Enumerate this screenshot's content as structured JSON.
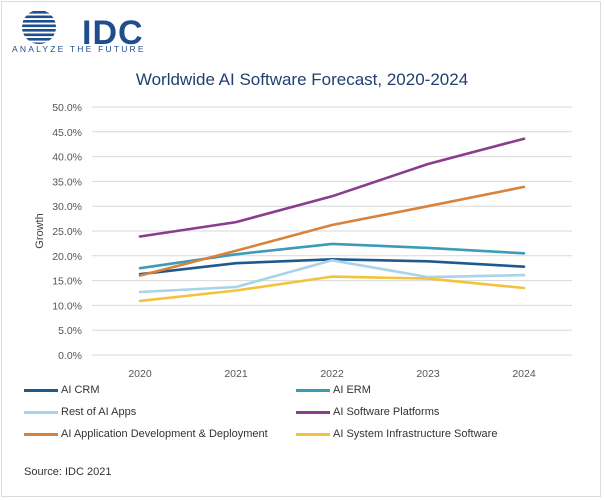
{
  "header": {
    "logo_text": "IDC",
    "logo_tagline": "ANALYZE THE FUTURE"
  },
  "footer": {
    "source": "Source: IDC 2021"
  },
  "colors": {
    "brand": "#1f4e8c",
    "grid": "#d9d9d9"
  },
  "chart_data": {
    "type": "line",
    "title": "Worldwide AI Software Forecast, 2020-2024",
    "xlabel": "",
    "ylabel": "Growth",
    "x": [
      "2020",
      "2021",
      "2022",
      "2023",
      "2024"
    ],
    "ylim": [
      0,
      50
    ],
    "yticks": [
      "0.0%",
      "5.0%",
      "10.0%",
      "15.0%",
      "20.0%",
      "25.0%",
      "30.0%",
      "35.0%",
      "40.0%",
      "45.0%",
      "50.0%"
    ],
    "grid": true,
    "legend_position": "bottom",
    "series": [
      {
        "name": "AI CRM",
        "color": "#1f5a8a",
        "values": [
          16.3,
          18.5,
          19.3,
          18.9,
          17.8
        ]
      },
      {
        "name": "AI ERM",
        "color": "#3a9cb8",
        "values": [
          17.5,
          20.3,
          22.4,
          21.6,
          20.5
        ]
      },
      {
        "name": "Rest of AI Apps",
        "color": "#a9d3e8",
        "values": [
          12.7,
          13.7,
          19.1,
          15.7,
          16.1
        ]
      },
      {
        "name": "AI Software Platforms",
        "color": "#8a3d8c",
        "values": [
          23.9,
          26.8,
          32.0,
          38.5,
          43.6
        ]
      },
      {
        "name": "AI Application Development & Deployment",
        "color": "#d9823b",
        "values": [
          16.0,
          21.0,
          26.2,
          30.0,
          33.9
        ]
      },
      {
        "name": "AI System Infrastructure Software",
        "color": "#f2c43d",
        "values": [
          10.9,
          13.0,
          15.8,
          15.4,
          13.5
        ]
      }
    ]
  }
}
